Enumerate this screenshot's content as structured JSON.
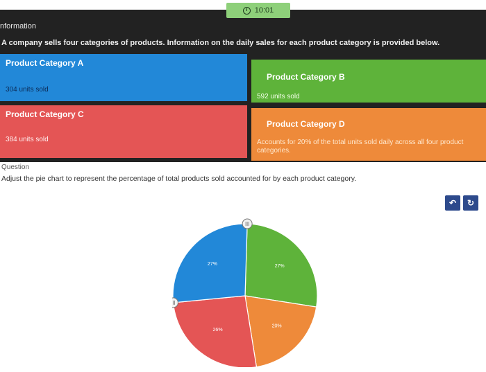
{
  "timer": {
    "text": "10:01",
    "icon": "clock-icon"
  },
  "info": {
    "heading": "nformation",
    "intro": "A company sells four categories of products. Information on the daily sales for each product category is provided below."
  },
  "cards": {
    "a": {
      "title": "Product Category A",
      "body": "304 units sold",
      "color": "#2288d8"
    },
    "b": {
      "title": "Product Category B",
      "body": "592 units sold",
      "color": "#5eb33a"
    },
    "c": {
      "title": "Product Category C",
      "body": "384 units sold",
      "color": "#e45555"
    },
    "d": {
      "title": "Product Category D",
      "body": "Accounts for 20% of the total units sold daily across all four product categories.",
      "color": "#ee8a3a"
    }
  },
  "question": {
    "label": "Question",
    "text": "Adjust the pie chart to represent the percentage of total products sold accounted for by each product category."
  },
  "tools": {
    "undo_icon": "undo-icon",
    "reset_icon": "reset-icon"
  },
  "chart_data": {
    "type": "pie",
    "slices": [
      {
        "label": "27%",
        "value": 27,
        "color": "#5eb33a"
      },
      {
        "label": "20%",
        "value": 20,
        "color": "#ee8a3a"
      },
      {
        "label": "26%",
        "value": 26,
        "color": "#e45555"
      },
      {
        "label": "27%",
        "value": 27,
        "color": "#2288d8"
      }
    ]
  }
}
